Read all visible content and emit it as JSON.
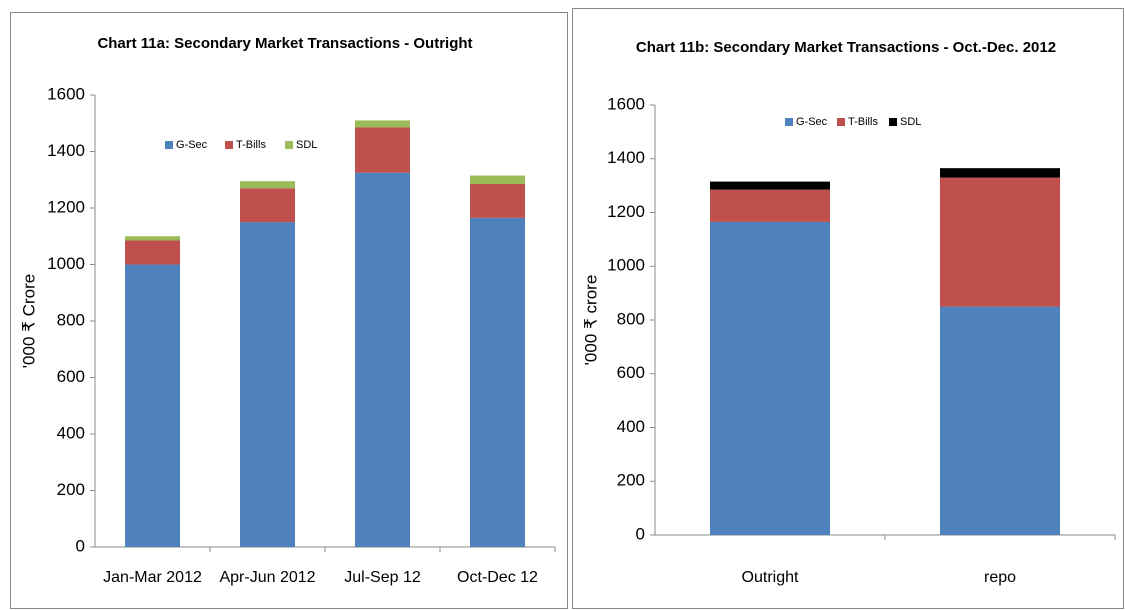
{
  "chart_data": [
    {
      "type": "stacked-bar",
      "title": "Chart 11a: Secondary Market Transactions - Outright",
      "y_label": "'000 ₹ Crore",
      "categories": [
        "Jan-Mar 2012",
        "Apr-Jun 2012",
        "Jul-Sep 12",
        "Oct-Dec 12"
      ],
      "series": [
        {
          "name": "G-Sec",
          "color": "#4f81bd",
          "values": [
            1000,
            1150,
            1325,
            1165
          ]
        },
        {
          "name": "T-Bills",
          "color": "#c0504d",
          "values": [
            85,
            120,
            160,
            120
          ]
        },
        {
          "name": "SDL",
          "color": "#9bbb59",
          "values": [
            15,
            25,
            25,
            30
          ]
        }
      ],
      "ylim": [
        0,
        1600
      ],
      "yticks": [
        0,
        200,
        400,
        600,
        800,
        1000,
        1200,
        1400,
        1600
      ],
      "legend": "top",
      "grid": false
    },
    {
      "type": "stacked-bar",
      "title": "Chart 11b: Secondary Market Transactions - Oct.-Dec. 2012",
      "y_label": "'000 ₹ crore",
      "categories": [
        "Outright",
        "repo"
      ],
      "series": [
        {
          "name": "G-Sec",
          "color": "#4f81bd",
          "values": [
            1165,
            850
          ]
        },
        {
          "name": "T-Bills",
          "color": "#c0504d",
          "values": [
            120,
            480
          ]
        },
        {
          "name": "SDL",
          "color": "#000000",
          "values": [
            30,
            35
          ]
        }
      ],
      "ylim": [
        0,
        1600
      ],
      "yticks": [
        0,
        200,
        400,
        600,
        800,
        1000,
        1200,
        1400,
        1600
      ],
      "legend": "top",
      "grid": false
    }
  ]
}
